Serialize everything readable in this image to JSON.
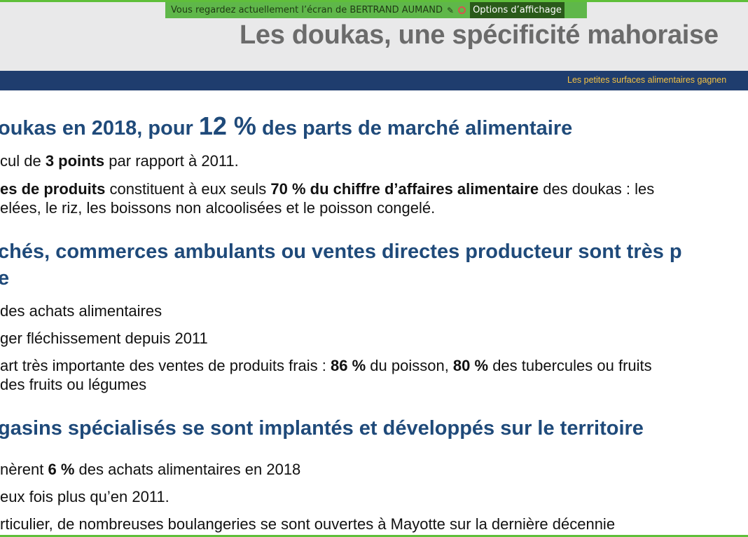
{
  "share_bar": {
    "text": "Vous regardez actuellement l’écran de BERTRAND AUMAND",
    "options_label": "Options d’affichage"
  },
  "slide": {
    "title": "Les doukas, une spécificité mahoraise",
    "ticker": "Les petites surfaces alimentaires gagnen"
  },
  "sections": [
    {
      "heading": {
        "pre": "oukas en 2018, pour ",
        "big": "12 %",
        "post": " des parts de marché alimentaire"
      },
      "lines": [
        {
          "pre": "cul de ",
          "b1": "3 points",
          "mid": " par rapport à 2011.",
          "b2": "",
          "post": ""
        },
        {
          "pre": "",
          "b1": "es de produits",
          "mid": " constituent à eux seuls ",
          "b2": "70 % du chiffre d’affaires alimentaire",
          "post": " des doukas : les"
        },
        {
          "pre": "elées, le riz, les boissons non alcoolisées et le poisson congelé.",
          "b1": "",
          "mid": "",
          "b2": "",
          "post": ""
        }
      ]
    },
    {
      "heading_line1": "chés, commerces ambulants ou ventes directes producteur sont très p",
      "heading_line2": "e",
      "lines": [
        {
          "pre": "des achats alimentaires",
          "b1": "",
          "mid": "",
          "b2": "",
          "post": ""
        },
        {
          "pre": "ger fléchissement depuis 2011",
          "b1": "",
          "mid": "",
          "b2": "",
          "post": ""
        },
        {
          "pre": "art très importante des ventes de produits frais : ",
          "b1": "86 %",
          "mid": " du poisson, ",
          "b2": "80 %",
          "post": " des tubercules ou fruits"
        },
        {
          "pre": "des fruits ou légumes",
          "b1": "",
          "mid": "",
          "b2": "",
          "post": ""
        }
      ]
    },
    {
      "heading": "gasins spécialisés se sont implantés et développés sur le territoire",
      "lines": [
        {
          "pre": "nèrent ",
          "b1": "6 %",
          "mid": " des achats alimentaires en 2018",
          "b2": "",
          "post": ""
        },
        {
          "pre": "eux fois plus qu’en 2011.",
          "b1": "",
          "mid": "",
          "b2": "",
          "post": ""
        },
        {
          "pre": "rticulier, de nombreuses boulangeries se sont ouvertes à Mayotte sur la dernière décennie",
          "b1": "",
          "mid": "",
          "b2": "",
          "post": ""
        }
      ]
    }
  ]
}
